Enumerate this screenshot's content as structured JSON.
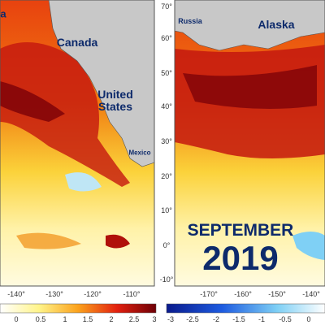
{
  "left_map": {
    "labels": {
      "cut_off": "a",
      "canada": "Canada",
      "united_states": "United States",
      "mexico": "Mexico"
    },
    "x_ticks": [
      "-140°",
      "-130°",
      "-120°",
      "-110°"
    ]
  },
  "right_map": {
    "labels": {
      "russia": "Russia",
      "alaska": "Alaska"
    },
    "y_ticks": [
      "70°",
      "60°",
      "50°",
      "40°",
      "30°",
      "20°",
      "10°",
      "0°",
      "-10°"
    ],
    "x_ticks": [
      "-170°",
      "-160°",
      "-150°",
      "-140°"
    ]
  },
  "title": {
    "month": "SEPTEMBER",
    "year": "2019"
  },
  "colorbars": {
    "warm": [
      "0",
      "0.5",
      "1",
      "1.5",
      "2",
      "2.5",
      "3"
    ],
    "cool": [
      "-3",
      "-2.5",
      "-2",
      "-1.5",
      "-1",
      "-0.5",
      "0"
    ]
  }
}
